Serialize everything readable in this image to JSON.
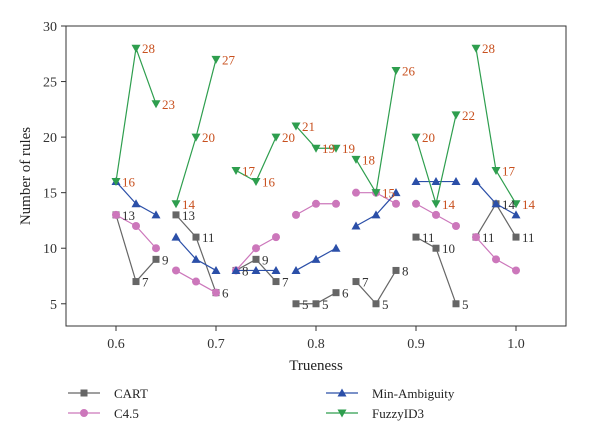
{
  "chart_data": {
    "type": "line",
    "xlabel": "Trueness",
    "ylabel": "Number of rules",
    "xlim": [
      0.55,
      1.05
    ],
    "ylim": [
      3,
      30
    ],
    "xticks": [
      0.6,
      0.7,
      0.8,
      0.9,
      1.0
    ],
    "xtick_labels": [
      "0.6",
      "0.7",
      "0.8",
      "0.9",
      "1.0"
    ],
    "yticks": [
      5,
      10,
      15,
      20,
      25,
      30
    ],
    "ytick_labels": [
      "5",
      "10",
      "15",
      "20",
      "25",
      "30"
    ],
    "grid": false,
    "legend_position": "bottom",
    "series": [
      {
        "name": "CART",
        "color": "#666666",
        "marker": "square",
        "segments": [
          [
            [
              0.6,
              13
            ],
            [
              0.62,
              7
            ],
            [
              0.64,
              9
            ]
          ],
          [
            [
              0.66,
              13
            ],
            [
              0.68,
              11
            ],
            [
              0.7,
              6
            ]
          ],
          [
            [
              0.72,
              8
            ],
            [
              0.74,
              9
            ],
            [
              0.76,
              7
            ]
          ],
          [
            [
              0.78,
              5
            ],
            [
              0.8,
              5
            ],
            [
              0.82,
              6
            ]
          ],
          [
            [
              0.84,
              7
            ],
            [
              0.86,
              5
            ],
            [
              0.88,
              8
            ]
          ],
          [
            [
              0.9,
              11
            ],
            [
              0.92,
              10
            ],
            [
              0.94,
              5
            ]
          ],
          [
            [
              0.96,
              11
            ],
            [
              0.98,
              14
            ],
            [
              1.0,
              11
            ]
          ]
        ],
        "labels": [
          {
            "x": 0.6,
            "y": 13,
            "text": "13"
          },
          {
            "x": 0.62,
            "y": 7,
            "text": "7"
          },
          {
            "x": 0.64,
            "y": 9,
            "text": "9"
          },
          {
            "x": 0.66,
            "y": 13,
            "text": "13"
          },
          {
            "x": 0.68,
            "y": 11,
            "text": "11"
          },
          {
            "x": 0.7,
            "y": 6,
            "text": "6"
          },
          {
            "x": 0.72,
            "y": 8,
            "text": "8"
          },
          {
            "x": 0.74,
            "y": 9,
            "text": "9"
          },
          {
            "x": 0.76,
            "y": 7,
            "text": "7"
          },
          {
            "x": 0.78,
            "y": 5,
            "text": "5"
          },
          {
            "x": 0.8,
            "y": 5,
            "text": "5"
          },
          {
            "x": 0.82,
            "y": 6,
            "text": "6"
          },
          {
            "x": 0.84,
            "y": 7,
            "text": "7"
          },
          {
            "x": 0.86,
            "y": 5,
            "text": "5"
          },
          {
            "x": 0.88,
            "y": 8,
            "text": "8"
          },
          {
            "x": 0.9,
            "y": 11,
            "text": "11"
          },
          {
            "x": 0.92,
            "y": 10,
            "text": "10"
          },
          {
            "x": 0.94,
            "y": 5,
            "text": "5"
          },
          {
            "x": 0.96,
            "y": 11,
            "text": "11"
          },
          {
            "x": 0.98,
            "y": 14,
            "text": "14"
          },
          {
            "x": 1.0,
            "y": 11,
            "text": "11"
          }
        ],
        "label_color": "#333333"
      },
      {
        "name": "C4.5",
        "color": "#cc77bb",
        "marker": "circle",
        "segments": [
          [
            [
              0.6,
              13
            ],
            [
              0.62,
              12
            ],
            [
              0.64,
              10
            ]
          ],
          [
            [
              0.66,
              8
            ],
            [
              0.68,
              7
            ],
            [
              0.7,
              6
            ]
          ],
          [
            [
              0.72,
              8
            ],
            [
              0.74,
              10
            ],
            [
              0.76,
              11
            ]
          ],
          [
            [
              0.78,
              13
            ],
            [
              0.8,
              14
            ],
            [
              0.82,
              14
            ]
          ],
          [
            [
              0.84,
              15
            ],
            [
              0.86,
              15
            ],
            [
              0.88,
              14
            ]
          ],
          [
            [
              0.9,
              14
            ],
            [
              0.92,
              13
            ],
            [
              0.94,
              12
            ]
          ],
          [
            [
              0.96,
              11
            ],
            [
              0.98,
              9
            ],
            [
              1.0,
              8
            ]
          ]
        ],
        "labels": [],
        "label_color": "#333333"
      },
      {
        "name": "Min-Ambiguity",
        "color": "#2b4fa8",
        "marker": "triangle-up",
        "segments": [
          [
            [
              0.6,
              16
            ],
            [
              0.62,
              14
            ],
            [
              0.64,
              13
            ]
          ],
          [
            [
              0.66,
              11
            ],
            [
              0.68,
              9
            ],
            [
              0.7,
              8
            ]
          ],
          [
            [
              0.72,
              8
            ],
            [
              0.74,
              8
            ],
            [
              0.76,
              8
            ]
          ],
          [
            [
              0.78,
              8
            ],
            [
              0.8,
              9
            ],
            [
              0.82,
              10
            ]
          ],
          [
            [
              0.84,
              12
            ],
            [
              0.86,
              13
            ],
            [
              0.88,
              15
            ]
          ],
          [
            [
              0.9,
              16
            ],
            [
              0.92,
              16
            ],
            [
              0.94,
              16
            ]
          ],
          [
            [
              0.96,
              16
            ],
            [
              0.98,
              14
            ],
            [
              1.0,
              13
            ]
          ]
        ],
        "labels": [],
        "label_color": "#333333"
      },
      {
        "name": "FuzzyID3",
        "color": "#2e9e4e",
        "marker": "triangle-down",
        "segments": [
          [
            [
              0.6,
              16
            ],
            [
              0.62,
              28
            ],
            [
              0.64,
              23
            ]
          ],
          [
            [
              0.66,
              14
            ],
            [
              0.68,
              20
            ],
            [
              0.7,
              27
            ]
          ],
          [
            [
              0.72,
              17
            ],
            [
              0.74,
              16
            ],
            [
              0.76,
              20
            ]
          ],
          [
            [
              0.78,
              21
            ],
            [
              0.8,
              19
            ],
            [
              0.82,
              19
            ]
          ],
          [
            [
              0.84,
              18
            ],
            [
              0.86,
              15
            ],
            [
              0.88,
              26
            ]
          ],
          [
            [
              0.9,
              20
            ],
            [
              0.92,
              14
            ],
            [
              0.94,
              22
            ]
          ],
          [
            [
              0.96,
              28
            ],
            [
              0.98,
              17
            ],
            [
              1.0,
              14
            ]
          ]
        ],
        "labels": [
          {
            "x": 0.6,
            "y": 16,
            "text": "16"
          },
          {
            "x": 0.62,
            "y": 28,
            "text": "28"
          },
          {
            "x": 0.64,
            "y": 23,
            "text": "23"
          },
          {
            "x": 0.66,
            "y": 14,
            "text": "14"
          },
          {
            "x": 0.68,
            "y": 20,
            "text": "20"
          },
          {
            "x": 0.7,
            "y": 27,
            "text": "27"
          },
          {
            "x": 0.72,
            "y": 17,
            "text": "17"
          },
          {
            "x": 0.74,
            "y": 16,
            "text": "16"
          },
          {
            "x": 0.76,
            "y": 20,
            "text": "20"
          },
          {
            "x": 0.78,
            "y": 21,
            "text": "21"
          },
          {
            "x": 0.8,
            "y": 19,
            "text": "19"
          },
          {
            "x": 0.82,
            "y": 19,
            "text": "19"
          },
          {
            "x": 0.84,
            "y": 18,
            "text": "18"
          },
          {
            "x": 0.86,
            "y": 15,
            "text": "15"
          },
          {
            "x": 0.88,
            "y": 26,
            "text": "26"
          },
          {
            "x": 0.9,
            "y": 20,
            "text": "20"
          },
          {
            "x": 0.92,
            "y": 14,
            "text": "14"
          },
          {
            "x": 0.94,
            "y": 22,
            "text": "22"
          },
          {
            "x": 0.96,
            "y": 28,
            "text": "28"
          },
          {
            "x": 0.98,
            "y": 17,
            "text": "17"
          },
          {
            "x": 1.0,
            "y": 14,
            "text": "14"
          }
        ],
        "label_color": "#c8501e"
      }
    ]
  }
}
